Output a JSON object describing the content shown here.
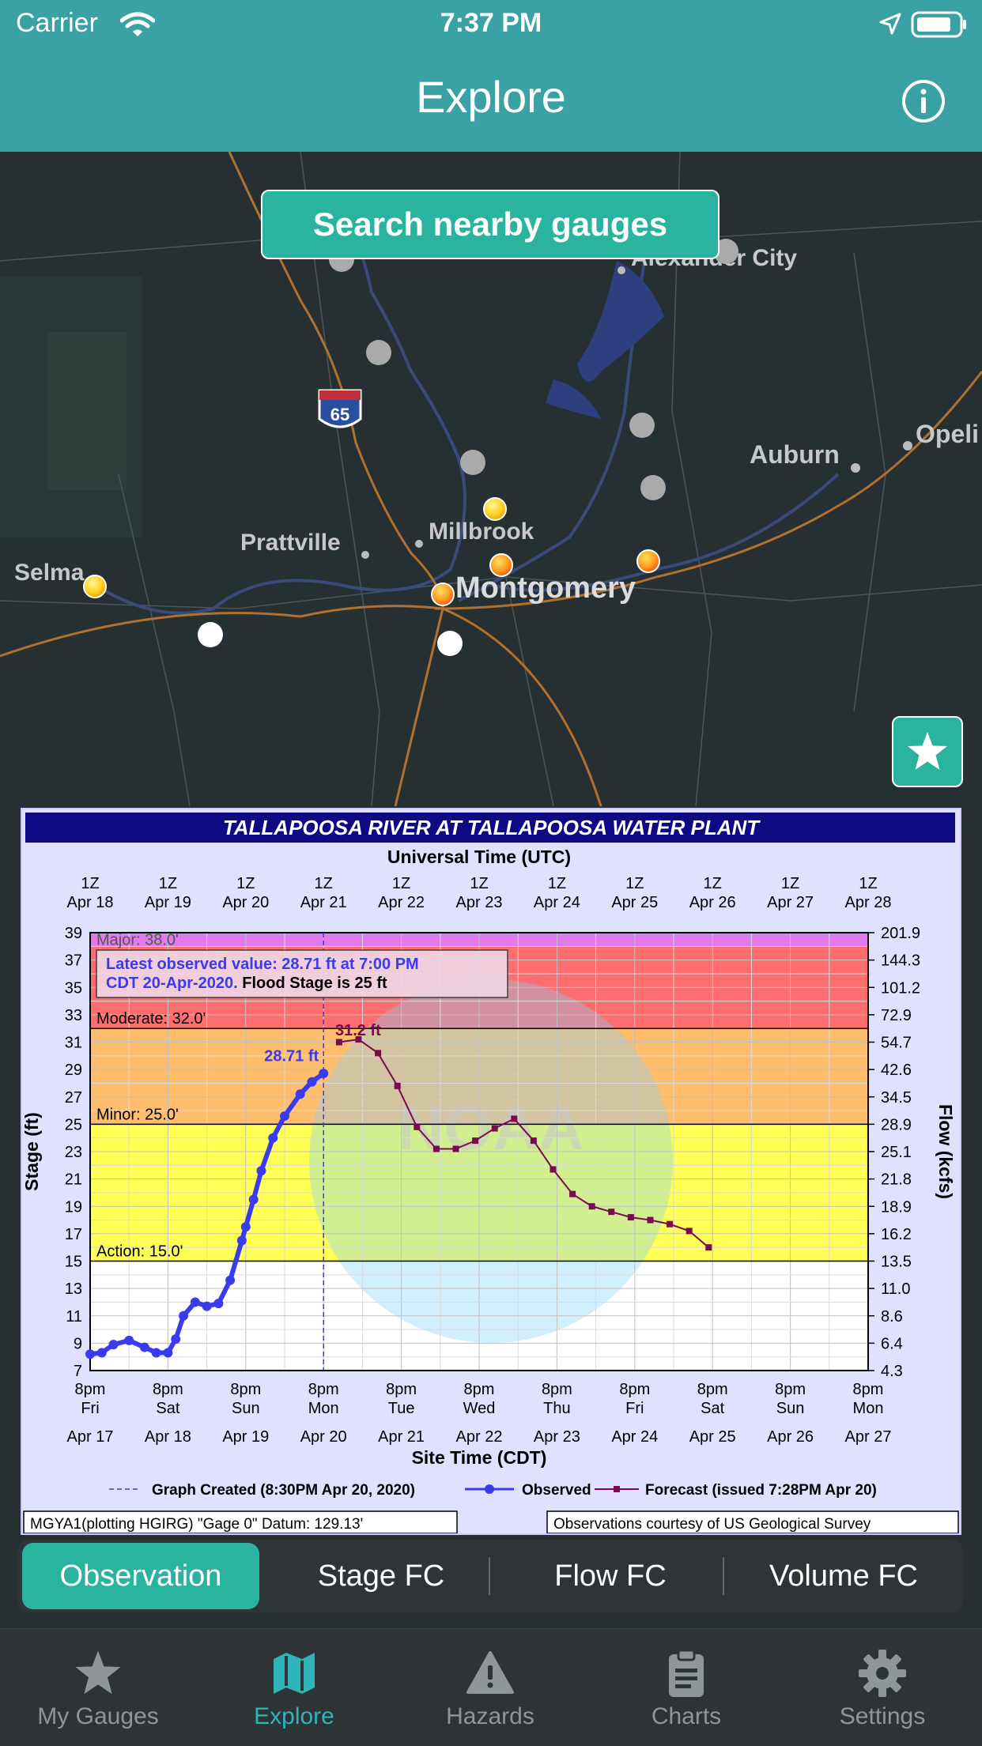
{
  "status_bar": {
    "carrier": "Carrier",
    "time": "7:37 PM"
  },
  "nav": {
    "title": "Explore"
  },
  "search_button": "Search nearby gauges",
  "map_labels": {
    "alexander_city": "Alexander City",
    "auburn": "Auburn",
    "opelika": "Opeli",
    "prattville": "Prattville",
    "millbrook": "Millbrook",
    "montgomery": "Montgomery",
    "selma": "Selma",
    "interstate": "65"
  },
  "chart": {
    "title": "TALLAPOOSA RIVER AT TALLAPOOSA WATER PLANT",
    "top_axis_title": "Universal Time (UTC)",
    "top_ticks_line1": [
      "1Z",
      "1Z",
      "1Z",
      "1Z",
      "1Z",
      "1Z",
      "1Z",
      "1Z",
      "1Z",
      "1Z",
      "1Z"
    ],
    "top_ticks_line2": [
      "Apr 18",
      "Apr 19",
      "Apr 20",
      "Apr 21",
      "Apr 22",
      "Apr 23",
      "Apr 24",
      "Apr 25",
      "Apr 26",
      "Apr 27",
      "Apr 28"
    ],
    "bottom_ticks_time": [
      "8pm",
      "8pm",
      "8pm",
      "8pm",
      "8pm",
      "8pm",
      "8pm",
      "8pm",
      "8pm",
      "8pm",
      "8pm"
    ],
    "bottom_ticks_day": [
      "Fri",
      "Sat",
      "Sun",
      "Mon",
      "Tue",
      "Wed",
      "Thu",
      "Fri",
      "Sat",
      "Sun",
      "Mon"
    ],
    "bottom_ticks_date": [
      "Apr 17",
      "Apr 18",
      "Apr 19",
      "Apr 20",
      "Apr 21",
      "Apr 22",
      "Apr 23",
      "Apr 24",
      "Apr 25",
      "Apr 26",
      "Apr 27"
    ],
    "bottom_axis_title": "Site Time (CDT)",
    "left_axis_title": "Stage (ft)",
    "right_axis_title": "Flow (kcfs)",
    "left_ticks": [
      "39",
      "37",
      "35",
      "33",
      "31",
      "29",
      "27",
      "25",
      "23",
      "21",
      "19",
      "17",
      "15",
      "13",
      "11",
      "9",
      "7"
    ],
    "right_ticks": [
      "201.9",
      "144.3",
      "101.2",
      "72.9",
      "54.7",
      "42.6",
      "34.5",
      "28.9",
      "25.1",
      "21.8",
      "18.9",
      "16.2",
      "13.5",
      "11.0",
      "8.6",
      "6.4",
      "4.3"
    ],
    "thresholds": {
      "major": "Major: 38.0'",
      "moderate": "Moderate: 32.0'",
      "minor": "Minor: 25.0'",
      "action": "Action: 15.0'"
    },
    "latest_line1": "Latest observed value: 28.71 ft at 7:00 PM",
    "latest_line2a": "CDT 20-Apr-2020.",
    "latest_line2b": " Flood Stage is 25 ft",
    "obs_label": "28.71 ft",
    "fc_label": "31.2 ft",
    "legend_created": "Graph Created (8:30PM Apr 20, 2020)",
    "legend_observed": "Observed",
    "legend_forecast": "Forecast (issued 7:28PM Apr 20)",
    "footer_left": "MGYA1(plotting HGIRG) \"Gage 0\" Datum: 129.13'",
    "footer_right": "Observations courtesy of US Geological Survey",
    "watermark": "NOAA",
    "colors": {
      "major": "#e27aee",
      "moderate": "#ff6e6e",
      "minor": "#ffbd6e",
      "action": "#ffff55",
      "observed": "#3a3aee",
      "forecast": "#7a0a50"
    }
  },
  "chart_data": {
    "type": "line",
    "title": "TALLAPOOSA RIVER AT TALLAPOOSA WATER PLANT",
    "xlabel": "Site Time (CDT)",
    "ylabel": "Stage (ft)",
    "y2label": "Flow (kcfs)",
    "ylim": [
      7,
      39
    ],
    "x_unit": "days after Apr 17 8pm CDT",
    "xlim": [
      0,
      10
    ],
    "series": [
      {
        "name": "Observed",
        "x": [
          0,
          0.15,
          0.3,
          0.5,
          0.7,
          0.85,
          1.0,
          1.1,
          1.2,
          1.35,
          1.5,
          1.65,
          1.8,
          1.95,
          2.0,
          2.1,
          2.2,
          2.35,
          2.5,
          2.7,
          2.85,
          3.0
        ],
        "y": [
          8.2,
          8.3,
          8.9,
          9.2,
          8.7,
          8.3,
          8.3,
          9.3,
          11.0,
          12.0,
          11.7,
          11.9,
          13.6,
          16.5,
          17.5,
          19.5,
          21.6,
          24.0,
          25.6,
          27.2,
          28.1,
          28.71
        ]
      },
      {
        "name": "Forecast (issued 7:28PM Apr 20)",
        "x": [
          3.2,
          3.45,
          3.7,
          3.95,
          4.2,
          4.45,
          4.7,
          4.95,
          5.2,
          5.45,
          5.7,
          5.95,
          6.2,
          6.45,
          6.7,
          6.95,
          7.2,
          7.45,
          7.7,
          7.95
        ],
        "y": [
          31.0,
          31.2,
          30.2,
          27.8,
          24.8,
          23.2,
          23.2,
          23.8,
          24.7,
          25.4,
          23.8,
          21.7,
          19.9,
          19.0,
          18.6,
          18.2,
          18.0,
          17.7,
          17.2,
          16.0
        ]
      }
    ],
    "thresholds": {
      "major": 38.0,
      "moderate": 32.0,
      "minor": 25.0,
      "action": 15.0,
      "flood_stage": 25
    },
    "latest_observed": {
      "value_ft": 28.71,
      "time": "7:00 PM CDT 20-Apr-2020"
    },
    "forecast_peak_ft": 31.2
  },
  "segments": [
    "Observation",
    "Stage FC",
    "Flow FC",
    "Volume FC"
  ],
  "tabs": [
    "My Gauges",
    "Explore",
    "Hazards",
    "Charts",
    "Settings"
  ]
}
